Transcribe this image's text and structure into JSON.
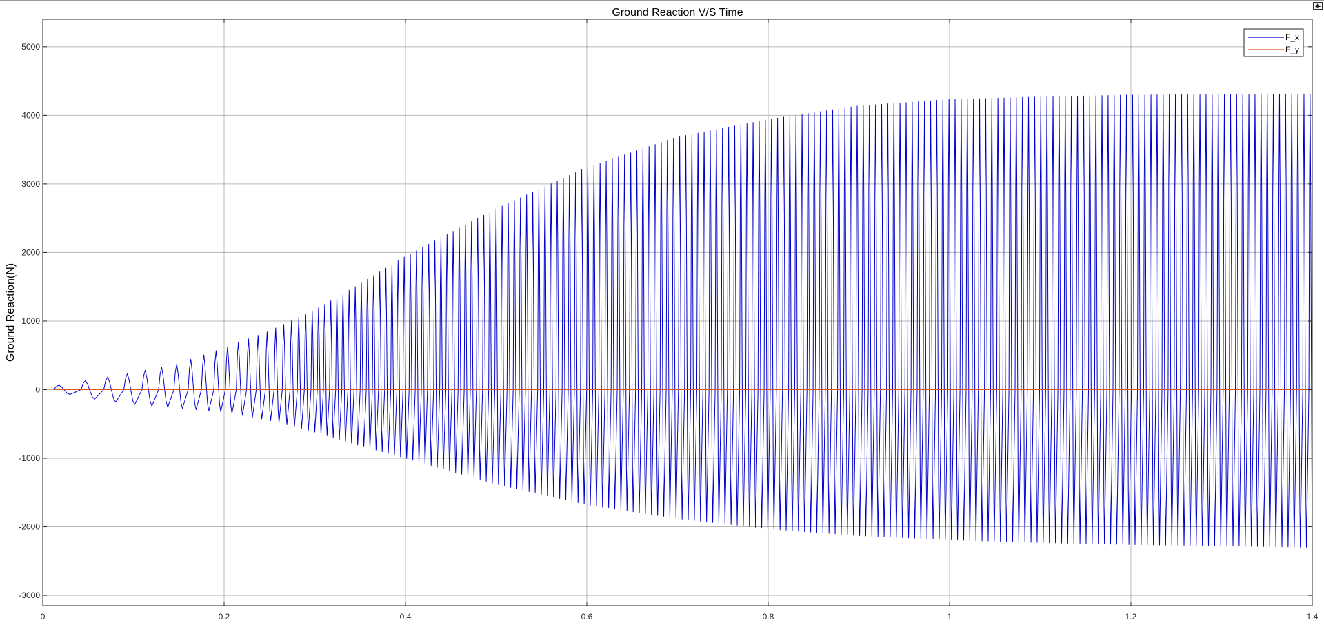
{
  "colors": {
    "fx_line": "#0000cc",
    "fy_line": "#d9531e",
    "grid": "#000000",
    "axes": "#262626",
    "background": "#ffffff"
  },
  "dock_button": {
    "icon": "undock-arrow-icon"
  },
  "chart_data": {
    "type": "line",
    "title": "Ground Reaction V/S Time",
    "xlabel": "",
    "ylabel": "Ground Reaction(N)",
    "xlim": [
      0,
      1.4
    ],
    "ylim": [
      -3150,
      5400
    ],
    "xticks": [
      0,
      0.2,
      0.4,
      0.6,
      0.8,
      1,
      1.2,
      1.4
    ],
    "xtick_labels": [
      "0",
      "0.2",
      "0.4",
      "0.6",
      "0.8",
      "1",
      "1.2",
      "1.4"
    ],
    "yticks": [
      -3000,
      -2000,
      -1000,
      0,
      1000,
      2000,
      3000,
      4000,
      5000
    ],
    "ytick_labels": [
      "-3000",
      "-2000",
      "-1000",
      "0",
      "1000",
      "2000",
      "3000",
      "4000",
      "5000"
    ],
    "grid": true,
    "legend_position": "top-right",
    "series": [
      {
        "name": "F_x",
        "color": "#0000cc",
        "style": "oscillation",
        "oscillation_start_time": 0.012,
        "oscillation_end_time": 1.4,
        "period_start": 0.036,
        "period_end": 0.00675,
        "period_decay_time": 0.3,
        "envelope_time": [
          0.0,
          0.05,
          0.1,
          0.15,
          0.2,
          0.25,
          0.3,
          0.35,
          0.4,
          0.5,
          0.6,
          0.7,
          0.8,
          0.9,
          1.0,
          1.1,
          1.2,
          1.3,
          1.4
        ],
        "peak_max": [
          0,
          130,
          250,
          380,
          620,
          880,
          1200,
          1600,
          2020,
          2750,
          3380,
          3850,
          4120,
          4330,
          4430,
          4470,
          4500,
          4510,
          4520
        ],
        "peak_min": [
          0,
          -130,
          -220,
          -270,
          -330,
          -450,
          -620,
          -820,
          -1000,
          -1380,
          -1680,
          -1880,
          -2030,
          -2130,
          -2190,
          -2230,
          -2260,
          -2280,
          -2300
        ]
      },
      {
        "name": "F_y",
        "color": "#d9531e",
        "style": "constant",
        "x": [
          0.012,
          1.4
        ],
        "y": [
          0,
          0
        ]
      }
    ]
  }
}
